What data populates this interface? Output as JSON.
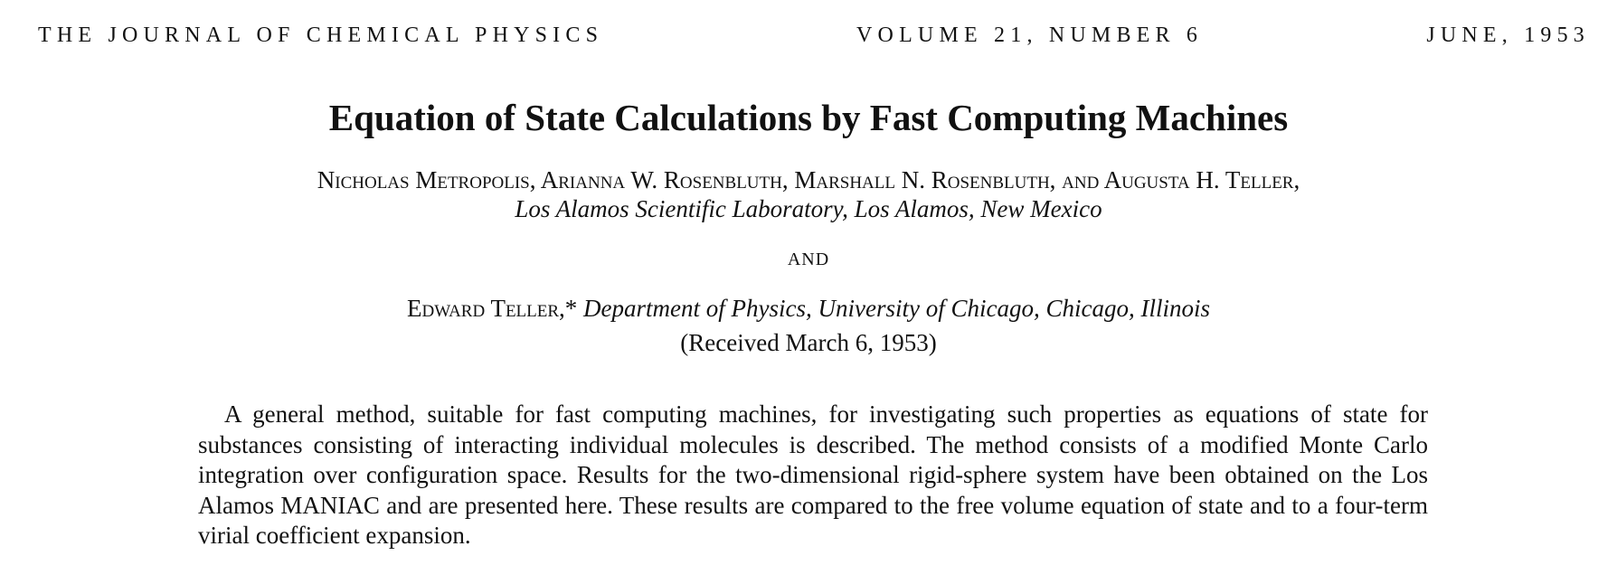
{
  "header": {
    "journal": "THE JOURNAL OF CHEMICAL PHYSICS",
    "volume": "VOLUME 21, NUMBER 6",
    "date": "JUNE, 1953"
  },
  "title": "Equation of State Calculations by Fast Computing Machines",
  "authors": "Nicholas Metropolis, Arianna W. Rosenbluth, Marshall N. Rosenbluth, and Augusta H. Teller,",
  "affiliation1": "Los Alamos Scientific Laboratory, Los Alamos, New Mexico",
  "conjunction": "AND",
  "author2": {
    "name": "Edward Teller,*",
    "affiliation": "Department of Physics, University of Chicago, Chicago, Illinois"
  },
  "received": "(Received March 6, 1953)",
  "abstract": "A general method, suitable for fast computing machines, for investigating such properties as equations of state for substances consisting of interacting individual molecules is described. The method consists of a modified Monte Carlo integration over configuration space. Results for the two-dimensional rigid-sphere system have been obtained on the Los Alamos MANIAC and are presented here. These results are compared to the free volume equation of state and to a four-term virial coefficient expansion."
}
